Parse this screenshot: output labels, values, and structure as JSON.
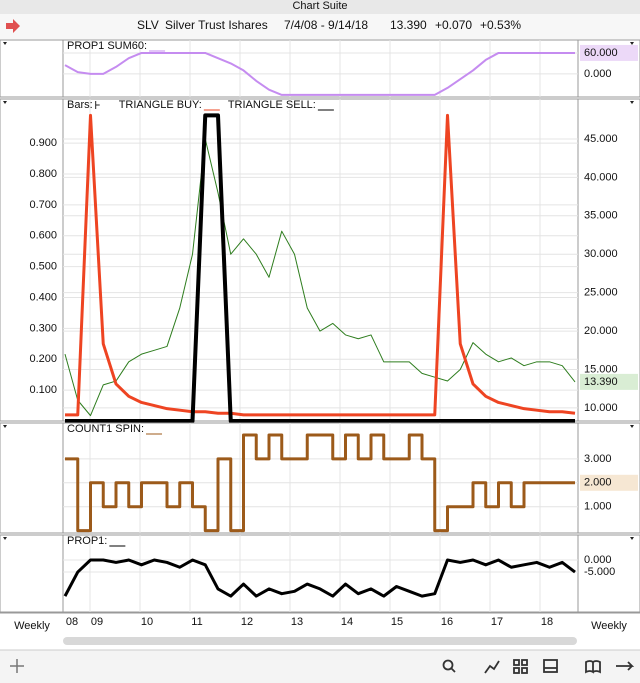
{
  "window_title": "Chart Suite",
  "header": {
    "symbol": "SLV",
    "name": "Silver Trust Ishares",
    "range": "7/4/08 - 9/14/18",
    "last": "13.390",
    "change": "+0.070",
    "change_pct": "+0.53%"
  },
  "xaxis": {
    "labels": [
      "08",
      "09",
      "10",
      "11",
      "12",
      "13",
      "14",
      "15",
      "16",
      "17",
      "18"
    ],
    "period": "Weekly"
  },
  "chart_data": [
    {
      "type": "line",
      "ylim": [
        -66,
        97
      ],
      "yticks": [
        {
          "value": 60,
          "label": "60.000"
        },
        {
          "value": 0,
          "label": "0.000"
        }
      ],
      "highlight_tick": 0,
      "highlight_color": "#ecd9f8",
      "series": [
        {
          "name": "PROP1 SUM60:",
          "color": "#c58cf0",
          "width": 2,
          "values": [
            25,
            5,
            0,
            0,
            20,
            45,
            60,
            60,
            60,
            60,
            60,
            60,
            45,
            30,
            10,
            -20,
            -45,
            -60,
            -60,
            -60,
            -60,
            -60,
            -60,
            -60,
            -60,
            -60,
            -60,
            -60,
            -60,
            -60,
            -40,
            -15,
            10,
            40,
            60,
            60,
            60,
            60,
            60,
            60,
            60
          ]
        }
      ]
    },
    {
      "type": "line",
      "ylim": [
        0,
        1.043
      ],
      "y2lim": [
        8.3,
        50.2
      ],
      "yticks": [
        {
          "value": 0.1,
          "label": "0.100"
        },
        {
          "value": 0.2,
          "label": "0.200"
        },
        {
          "value": 0.3,
          "label": "0.300"
        },
        {
          "value": 0.4,
          "label": "0.400"
        },
        {
          "value": 0.5,
          "label": "0.500"
        },
        {
          "value": 0.6,
          "label": "0.600"
        },
        {
          "value": 0.7,
          "label": "0.700"
        },
        {
          "value": 0.8,
          "label": "0.800"
        },
        {
          "value": 0.9,
          "label": "0.900"
        }
      ],
      "y2ticks": [
        {
          "value": 10,
          "label": "10.000"
        },
        {
          "value": 15,
          "label": "15.000"
        },
        {
          "value": 20,
          "label": "20.000"
        },
        {
          "value": 25,
          "label": "25.000"
        },
        {
          "value": 30,
          "label": "30.000"
        },
        {
          "value": 35,
          "label": "35.000"
        },
        {
          "value": 40,
          "label": "40.000"
        },
        {
          "value": 45,
          "label": "45.000"
        }
      ],
      "last_color": "#d9edd4",
      "series": [
        {
          "name": "Bars:",
          "color": "#2e7d1e",
          "width": 1,
          "axis": "y2",
          "values": [
            17,
            11,
            9,
            13,
            13.5,
            16,
            17,
            17.5,
            18,
            23,
            30,
            45,
            38,
            30,
            32,
            30,
            27,
            33,
            30,
            23,
            20,
            21,
            19.5,
            19,
            19.5,
            16,
            16,
            16,
            14.5,
            14,
            13.5,
            15,
            18.5,
            17,
            16,
            16.5,
            15.5,
            16,
            16,
            15.5,
            13.39
          ]
        },
        {
          "name": "TRIANGLE BUY:",
          "color": "#ee4422",
          "width": 3,
          "values": [
            0.02,
            0.02,
            0.99,
            0.25,
            0.12,
            0.08,
            0.06,
            0.05,
            0.04,
            0.035,
            0.03,
            0.03,
            0.025,
            0.025,
            0.02,
            0.02,
            0.02,
            0.02,
            0.02,
            0.02,
            0.02,
            0.02,
            0.02,
            0.02,
            0.02,
            0.02,
            0.02,
            0.02,
            0.02,
            0.02,
            0.99,
            0.25,
            0.12,
            0.08,
            0.06,
            0.05,
            0.04,
            0.035,
            0.03,
            0.03,
            0.025
          ]
        },
        {
          "name": "TRIANGLE SELL:",
          "color": "#000000",
          "width": 4,
          "values": [
            0,
            0,
            0,
            0,
            0,
            0,
            0,
            0,
            0,
            0,
            0,
            0.99,
            0.99,
            0,
            0,
            0,
            0,
            0,
            0,
            0,
            0,
            0,
            0,
            0,
            0,
            0,
            0,
            0,
            0,
            0,
            0,
            0,
            0,
            0,
            0,
            0,
            0,
            0,
            0,
            0,
            0
          ]
        }
      ]
    },
    {
      "type": "step",
      "ylim": [
        -0.1,
        4.5
      ],
      "yticks": [
        {
          "value": 3,
          "label": "3.000"
        },
        {
          "value": 2,
          "label": "2.000"
        },
        {
          "value": 1,
          "label": "1.000"
        }
      ],
      "highlight_tick": 1,
      "highlight_color": "#f6e7d3",
      "series": [
        {
          "name": "COUNT1 SPIN:",
          "color": "#9c5a1a",
          "width": 3,
          "values": [
            3,
            0,
            2,
            1,
            2,
            1,
            2,
            2,
            1,
            2,
            1,
            0,
            3,
            0,
            4,
            3,
            4,
            3,
            3,
            4,
            4,
            3,
            4,
            3,
            4,
            3,
            3,
            4,
            3,
            0,
            1,
            1,
            2,
            1,
            2,
            1,
            2,
            2,
            2,
            2,
            2
          ]
        }
      ]
    },
    {
      "type": "line",
      "ylim": [
        -21.6,
        10.4
      ],
      "yticks": [
        {
          "value": 0,
          "label": "0.000"
        },
        {
          "value": -5,
          "label": "-5.000"
        }
      ],
      "highlight_tick": 1,
      "highlight_color": "#ffffff",
      "series": [
        {
          "name": "PROP1:",
          "color": "#000000",
          "width": 3,
          "values": [
            -15,
            -5,
            0,
            0,
            -1,
            0,
            -2,
            0,
            -1,
            -3,
            0,
            -2,
            -12,
            -15,
            -10,
            -15,
            -12,
            -14,
            -13,
            -10,
            -12,
            -15,
            -10,
            -14,
            -12,
            -15,
            -11,
            -13,
            -15,
            -14,
            0,
            -1,
            0,
            -2,
            0,
            -3,
            -2,
            -1,
            -3,
            -1,
            -5
          ]
        }
      ]
    }
  ]
}
